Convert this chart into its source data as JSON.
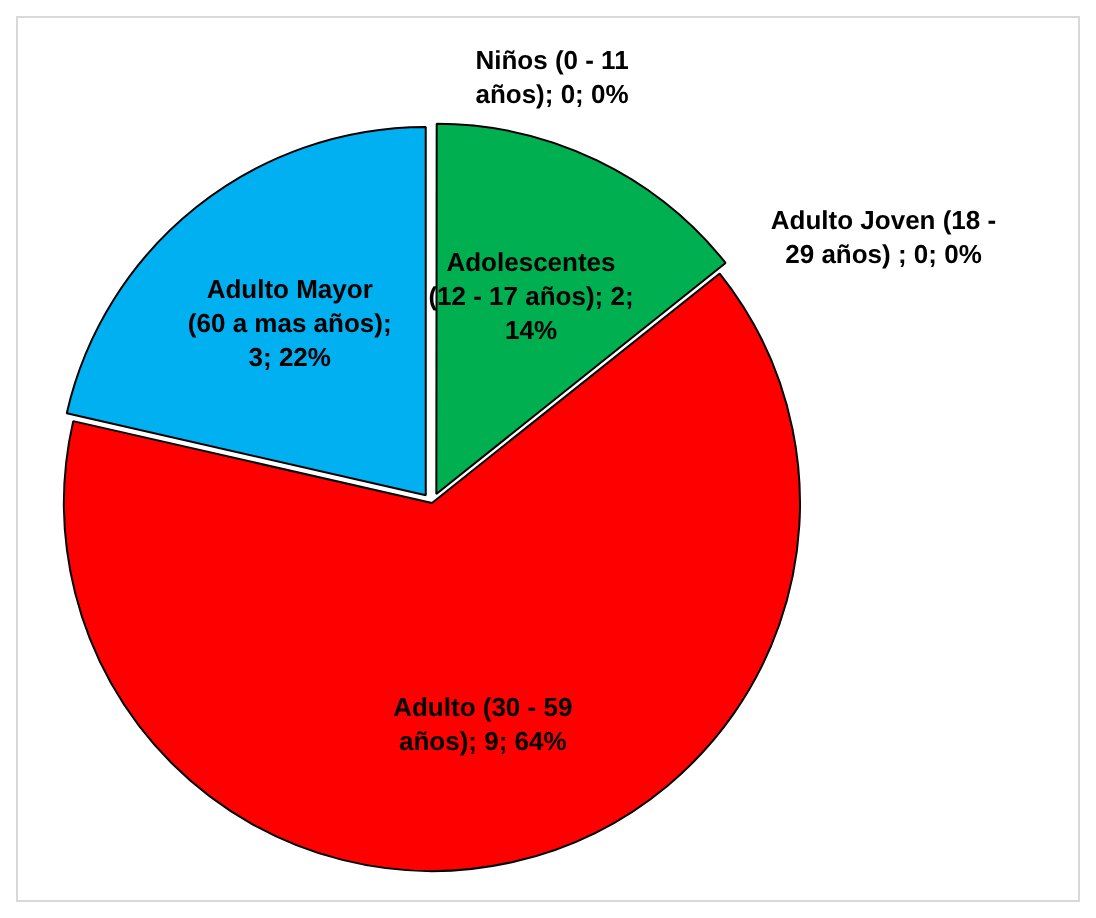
{
  "chart_data": {
    "type": "pie",
    "categories": [
      "Niños (0 - 11 años); 0; 0%",
      "Adolescentes (12 - 17 años); 2; 14%",
      "Adulto Joven (18 - 29 años) ; 0; 0%",
      "Adulto (30 - 59 años); 9; 64%",
      "Adulto Mayor (60 a mas años); 3; 22%"
    ],
    "values": [
      0,
      2,
      0,
      9,
      3
    ],
    "colors": [
      "#4472c4",
      "#00b050",
      "#a5a5a5",
      "#ff0000",
      "#00b0f0"
    ],
    "legend": false
  }
}
